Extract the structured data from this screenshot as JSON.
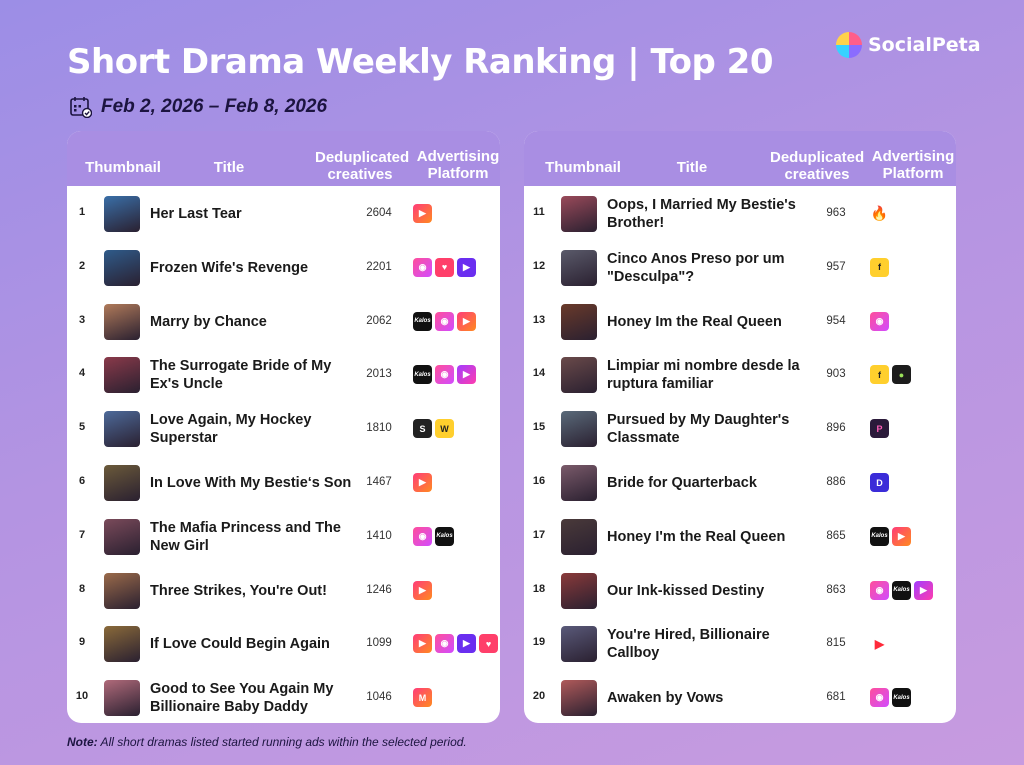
{
  "header": {
    "title": "Short Drama Weekly Ranking | Top 20",
    "logo_text": "SocialPeta",
    "date_range": "Feb 2, 2026 – Feb 8, 2026"
  },
  "columns": {
    "thumbnail": "Thumbnail",
    "title": "Title",
    "dedup_line1": "Deduplicated",
    "dedup_line2": "creatives",
    "platform_line1": "Advertising",
    "platform_line2": "Platform"
  },
  "note": {
    "label": "Note:",
    "text": " All short dramas listed started running ads within the selected period."
  },
  "colors": {
    "header_bar": "#a98ee3",
    "background_top": "#9c8ee6",
    "background_bottom": "#c79be0"
  },
  "chart_data": {
    "type": "table",
    "title": "Short Drama Weekly Ranking | Top 20",
    "columns": [
      "Thumbnail",
      "Title",
      "Deduplicated creatives",
      "Advertising Platform"
    ],
    "rows": [
      {
        "rank": "1",
        "title": "Her Last Tear",
        "creatives": 2604,
        "thumb": "#3a6fa8",
        "platforms": [
          {
            "icon": "play-icon",
            "style": "p-grad1",
            "glyph": "▶"
          }
        ]
      },
      {
        "rank": "2",
        "title": "Frozen Wife's Revenge",
        "creatives": 2201,
        "thumb": "#2f5b8a",
        "platforms": [
          {
            "icon": "chat-icon",
            "style": "p-grad2",
            "glyph": "◉"
          },
          {
            "icon": "heart-icon",
            "style": "p-heart",
            "glyph": "♥"
          },
          {
            "icon": "video-icon",
            "style": "p-purple",
            "glyph": "▶"
          }
        ]
      },
      {
        "rank": "3",
        "title": "Marry by Chance",
        "creatives": 2062,
        "thumb": "#b07a5a",
        "platforms": [
          {
            "icon": "kalos-icon",
            "style": "p-kalos",
            "glyph": "Kalos"
          },
          {
            "icon": "chat-icon",
            "style": "p-grad2",
            "glyph": "◉"
          },
          {
            "icon": "play-icon",
            "style": "p-grad1",
            "glyph": "▶"
          }
        ]
      },
      {
        "rank": "4",
        "title": "The Surrogate Bride of My Ex's Uncle",
        "creatives": 2013,
        "thumb": "#8a3a4a",
        "platforms": [
          {
            "icon": "kalos-icon",
            "style": "p-kalos",
            "glyph": "Kalos"
          },
          {
            "icon": "chat-icon",
            "style": "p-grad2",
            "glyph": "◉"
          },
          {
            "icon": "violet-play-icon",
            "style": "p-violet",
            "glyph": "▶"
          }
        ]
      },
      {
        "rank": "5",
        "title": "Love Again, My Hockey Superstar",
        "creatives": 1810,
        "thumb": "#4d6a9a",
        "platforms": [
          {
            "icon": "s-icon",
            "style": "p-dark",
            "glyph": "S"
          },
          {
            "icon": "yellow-icon",
            "style": "p-yellow",
            "glyph": "W"
          }
        ]
      },
      {
        "rank": "6",
        "title": "In Love With My Bestie‘s Son",
        "creatives": 1467,
        "thumb": "#6b5a3a",
        "platforms": [
          {
            "icon": "play-icon",
            "style": "p-grad1",
            "glyph": "▶"
          }
        ]
      },
      {
        "rank": "7",
        "title": "The Mafia Princess and The New Girl",
        "creatives": 1410,
        "thumb": "#7a4a5a",
        "platforms": [
          {
            "icon": "chat-icon",
            "style": "p-grad2",
            "glyph": "◉"
          },
          {
            "icon": "kalos-icon",
            "style": "p-kalos",
            "glyph": "Kalos"
          }
        ]
      },
      {
        "rank": "8",
        "title": "Three Strikes, You're Out!",
        "creatives": 1246,
        "thumb": "#9a6a4a",
        "platforms": [
          {
            "icon": "play-icon",
            "style": "p-grad1",
            "glyph": "▶"
          }
        ]
      },
      {
        "rank": "9",
        "title": "If Love Could Begin Again",
        "creatives": 1099,
        "thumb": "#8a6a3a",
        "platforms": [
          {
            "icon": "play-icon",
            "style": "p-grad1",
            "glyph": "▶"
          },
          {
            "icon": "chat-icon",
            "style": "p-grad2",
            "glyph": "◉"
          },
          {
            "icon": "video-icon",
            "style": "p-purple",
            "glyph": "▶"
          },
          {
            "icon": "heart-icon",
            "style": "p-heart",
            "glyph": "♥"
          }
        ]
      },
      {
        "rank": "10",
        "title": "Good to See You Again My Billionaire Baby Daddy",
        "creatives": 1046,
        "thumb": "#b06a7a",
        "platforms": [
          {
            "icon": "m-icon",
            "style": "p-grad1",
            "glyph": "M"
          }
        ]
      },
      {
        "rank": "11",
        "title": "Oops, I Married My Bestie's Brother!",
        "creatives": 963,
        "thumb": "#9a4a5a",
        "platforms": [
          {
            "icon": "fire-icon",
            "style": "p-fire",
            "glyph": "🔥"
          }
        ]
      },
      {
        "rank": "12",
        "title": "Cinco Anos Preso por um \"Desculpa\"?",
        "creatives": 957,
        "thumb": "#5a5a6a",
        "platforms": [
          {
            "icon": "yellow-icon",
            "style": "p-yellow",
            "glyph": "f"
          }
        ]
      },
      {
        "rank": "13",
        "title": "Honey Im the Real Queen",
        "creatives": 954,
        "thumb": "#6a3a2a",
        "platforms": [
          {
            "icon": "chat-icon",
            "style": "p-grad2",
            "glyph": "◉"
          }
        ]
      },
      {
        "rank": "14",
        "title": "Limpiar mi nombre desde la ruptura familiar",
        "creatives": 903,
        "thumb": "#6a4a4a",
        "platforms": [
          {
            "icon": "yellow-icon",
            "style": "p-yellow",
            "glyph": "f"
          },
          {
            "icon": "green-icon",
            "style": "p-green",
            "glyph": "●"
          }
        ]
      },
      {
        "rank": "15",
        "title": "Pursued by My Daughter's Classmate",
        "creatives": 896,
        "thumb": "#5a6a7a",
        "platforms": [
          {
            "icon": "p-icon",
            "style": "p-p",
            "glyph": "P"
          }
        ]
      },
      {
        "rank": "16",
        "title": "Bride for Quarterback",
        "creatives": 886,
        "thumb": "#7a5a6a",
        "platforms": [
          {
            "icon": "d-icon",
            "style": "p-indigo",
            "glyph": "D"
          }
        ]
      },
      {
        "rank": "17",
        "title": "Honey I'm the Real Queen",
        "creatives": 865,
        "thumb": "#4a3a3a",
        "platforms": [
          {
            "icon": "kalos-icon",
            "style": "p-kalos",
            "glyph": "Kalos"
          },
          {
            "icon": "play-icon",
            "style": "p-grad1",
            "glyph": "▶"
          }
        ]
      },
      {
        "rank": "18",
        "title": "Our Ink-kissed Destiny",
        "creatives": 863,
        "thumb": "#8a3a3a",
        "platforms": [
          {
            "icon": "chat-icon",
            "style": "p-grad2",
            "glyph": "◉"
          },
          {
            "icon": "kalos-icon",
            "style": "p-kalos",
            "glyph": "Kalos"
          },
          {
            "icon": "violet-play-icon",
            "style": "p-violet",
            "glyph": "▶"
          }
        ]
      },
      {
        "rank": "19",
        "title": "You're Hired, Billionaire Callboy",
        "creatives": 815,
        "thumb": "#5a5a7a",
        "platforms": [
          {
            "icon": "red-play-icon",
            "style": "p-red",
            "glyph": "▶"
          }
        ]
      },
      {
        "rank": "20",
        "title": "Awaken by Vows",
        "creatives": 681,
        "thumb": "#b05a5a",
        "platforms": [
          {
            "icon": "chat-icon",
            "style": "p-grad2",
            "glyph": "◉"
          },
          {
            "icon": "kalos-icon",
            "style": "p-kalos",
            "glyph": "Kalos"
          }
        ]
      }
    ]
  }
}
